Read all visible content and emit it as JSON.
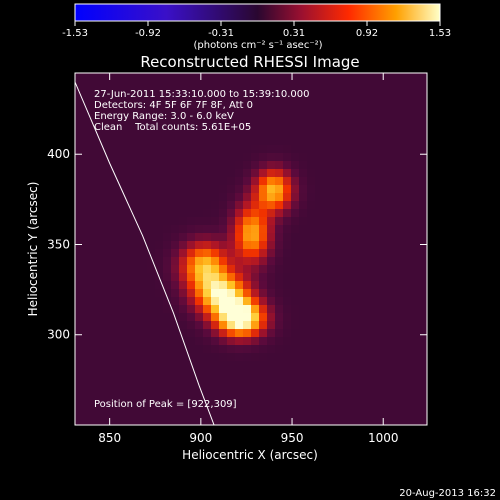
{
  "colorbar": {
    "ticks": [
      "-1.53",
      "-0.92",
      "-0.31",
      "0.31",
      "0.92",
      "1.53"
    ],
    "unit_label": "(photons cm⁻² s⁻¹ asec⁻²)"
  },
  "info": {
    "line1": "27-Jun-2011 15:33:10.000 to 15:39:10.000",
    "line2": "Detectors: 4F 5F 6F 7F 8F, Att 0",
    "line3": "Energy Range: 3.0 - 6.0 keV",
    "line4": "Clean    Total counts: 5.61E+05",
    "peak": "Position of Peak = [922,309]"
  },
  "footer": {
    "timestamp": "20-Aug-2013 16:32"
  },
  "chart_data": {
    "type": "heatmap",
    "title": "Reconstructed RHESSI Image",
    "xlabel": "Heliocentric X (arcsec)",
    "ylabel": "Heliocentric Y (arcsec)",
    "xlim": [
      831,
      1024
    ],
    "ylim": [
      250,
      445
    ],
    "xticks": [
      850,
      900,
      950,
      1000
    ],
    "yticks": [
      300,
      350,
      400
    ],
    "colorbar_range": [
      -1.53,
      1.53
    ],
    "sources": [
      {
        "x": 922,
        "y": 309,
        "peak": 1.53,
        "sigma_x": 9,
        "sigma_y": 7
      },
      {
        "x": 912,
        "y": 322,
        "peak": 1.25,
        "sigma_x": 10,
        "sigma_y": 8
      },
      {
        "x": 902,
        "y": 338,
        "peak": 1.05,
        "sigma_x": 9,
        "sigma_y": 9
      },
      {
        "x": 928,
        "y": 356,
        "peak": 1.0,
        "sigma_x": 7,
        "sigma_y": 11
      },
      {
        "x": 940,
        "y": 380,
        "peak": 1.05,
        "sigma_x": 7,
        "sigma_y": 8
      }
    ],
    "limb_curve": [
      [
        831,
        440
      ],
      [
        850,
        395
      ],
      [
        868,
        355
      ],
      [
        885,
        312
      ],
      [
        899,
        272
      ],
      [
        908,
        248
      ]
    ]
  }
}
